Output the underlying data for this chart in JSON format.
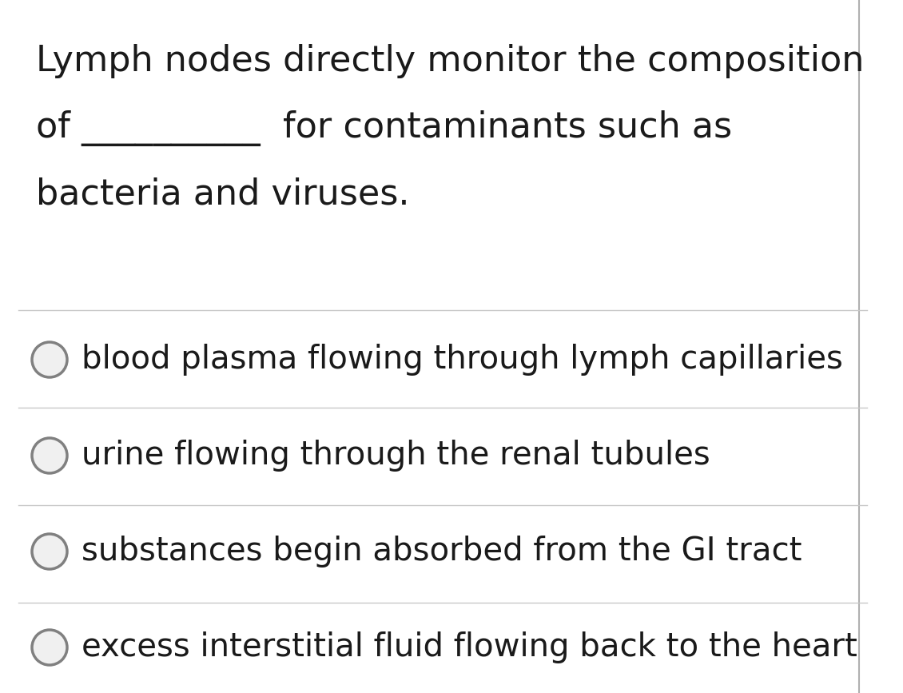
{
  "background_color": "#ffffff",
  "question_text_lines": [
    "Lymph nodes directly monitor the composition",
    "of __________  for contaminants such as",
    "bacteria and viruses."
  ],
  "options": [
    "blood plasma flowing through lymph capillaries",
    "urine flowing through the renal tubules",
    "substances begin absorbed from the GI tract",
    "excess interstitial fluid flowing back to the heart"
  ],
  "text_color": "#1a1a1a",
  "line_color": "#c8c8c8",
  "circle_edge_color": "#808080",
  "circle_face_color": "#f0f0f0",
  "font_size_question": 32,
  "font_size_options": 29,
  "right_line_color": "#b0b0b0",
  "fig_width": 11.3,
  "fig_height": 8.67,
  "dpi": 100
}
